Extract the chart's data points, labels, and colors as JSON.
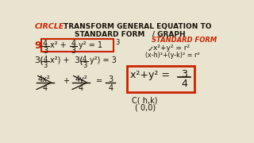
{
  "bg_color": "#e8e4d0",
  "red": "#cc2200",
  "black": "#1a1208",
  "darkgray": "#2a2010",
  "title_red": "CIRCLE:",
  "title_black": " TRANSFORM GENERAL EQUATION TO",
  "title_line2": "STANDARD FORM   / GRAPH",
  "std_form_title": "STANDARD FORM",
  "std_eq1": "x²+y² = r²",
  "std_eq2": "(x-h)²+(y-k)² = r²",
  "center_label": "C( h,k)",
  "center_val": "( 0,0)"
}
